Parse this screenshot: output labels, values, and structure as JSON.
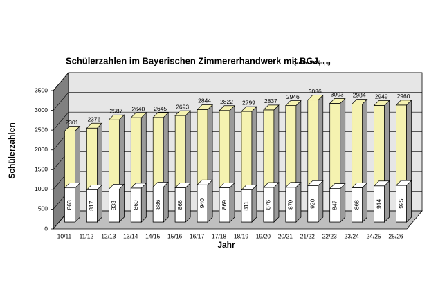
{
  "chart_data": {
    "type": "bar3d",
    "title": "Schülerzahlen im Bayerischen Zimmererhandwerk mit BGJ,",
    "subtitle": "Quelle LIV/mpg",
    "x_label": "Jahr",
    "y_label": "Schülerzahlen",
    "categories": [
      "10/11",
      "11/12",
      "12/13",
      "13/14",
      "14/15",
      "15/16",
      "16/17",
      "17/18",
      "18/19",
      "19/20",
      "20/21",
      "21/22",
      "22/23",
      "23/24",
      "24/25",
      "25/26"
    ],
    "series": [
      {
        "color": "#f5f2b0",
        "values": [
          2301,
          2376,
          2587,
          2640,
          2645,
          2693,
          2844,
          2822,
          2799,
          2837,
          2946,
          3086,
          3003,
          2984,
          2949,
          2960
        ]
      },
      {
        "color": "#ffffff",
        "values": [
          863,
          817,
          833,
          860,
          886,
          866,
          940,
          869,
          811,
          876,
          879,
          920,
          847,
          868,
          914,
          925
        ]
      }
    ],
    "ylim": [
      0,
      3500
    ],
    "yticks": [
      0,
      500,
      1000,
      1500,
      2000,
      2500,
      3000,
      3500
    ],
    "grid": true
  }
}
